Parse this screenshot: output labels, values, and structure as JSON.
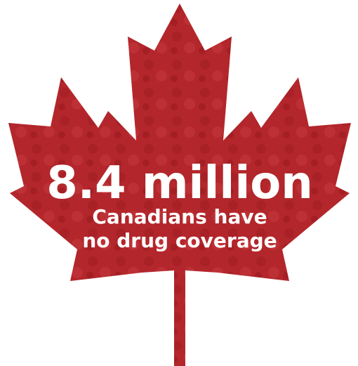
{
  "headline": "8.4 million",
  "subtext": [
    "Canadians have",
    "no drug coverage"
  ]
}
